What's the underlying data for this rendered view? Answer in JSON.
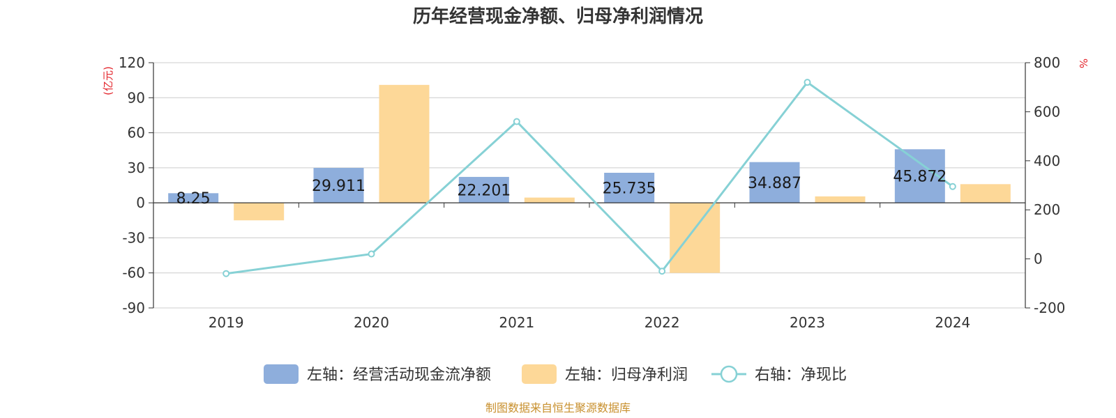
{
  "chart_data": {
    "type": "bar",
    "title": "历年经营现金净额、归母净利润情况",
    "categories": [
      "2019",
      "2020",
      "2021",
      "2022",
      "2023",
      "2024"
    ],
    "left_axis": {
      "unit": "(亿元)",
      "ylim": [
        -90,
        120
      ],
      "ticks": [
        "120",
        "90",
        "60",
        "30",
        "0",
        "-30",
        "-60",
        "-90"
      ]
    },
    "right_axis": {
      "unit": "%",
      "ylim": [
        -200,
        800
      ],
      "ticks": [
        "800",
        "600",
        "400",
        "200",
        "0",
        "-200"
      ]
    },
    "series": [
      {
        "name": "左轴：经营活动现金流净额",
        "type": "bar",
        "axis": "left",
        "color": "#8eaedc",
        "values": [
          8.25,
          29.911,
          22.201,
          25.735,
          34.887,
          45.872
        ],
        "labels": [
          "8.25",
          "29.911",
          "22.201",
          "25.735",
          "34.887",
          "45.872"
        ]
      },
      {
        "name": "左轴：归母净利润",
        "type": "bar",
        "axis": "left",
        "color": "#fdd898",
        "values": [
          -15,
          101,
          4.5,
          -60,
          5.5,
          16
        ]
      },
      {
        "name": "右轴：净现比",
        "type": "line",
        "axis": "right",
        "color": "#86d1d5",
        "values": [
          -60,
          20,
          560,
          -50,
          720,
          295
        ]
      }
    ],
    "grid": true,
    "legend_position": "bottom",
    "source": "制图数据来自恒生聚源数据库"
  }
}
